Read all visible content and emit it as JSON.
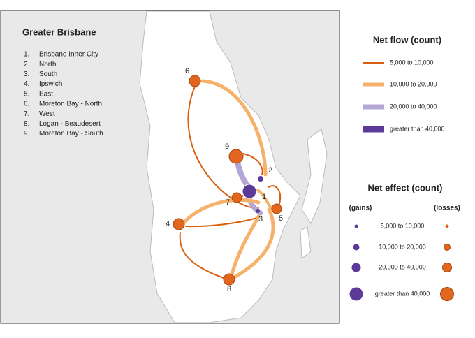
{
  "map": {
    "title": "Greater Brisbane",
    "regions": [
      {
        "number": "1.",
        "name": "Brisbane Inner City"
      },
      {
        "number": "2.",
        "name": "North"
      },
      {
        "number": "3.",
        "name": "South"
      },
      {
        "number": "4.",
        "name": "Ipswich"
      },
      {
        "number": "5.",
        "name": "East"
      },
      {
        "number": "6.",
        "name": "Moreton Bay - North"
      },
      {
        "number": "7.",
        "name": "West"
      },
      {
        "number": "8.",
        "name": "Logan - Beaudesert"
      },
      {
        "number": "9.",
        "name": "Moreton Bay - South"
      }
    ],
    "node_labels": [
      "1",
      "2",
      "3",
      "4",
      "5",
      "6",
      "7",
      "8",
      "9"
    ]
  },
  "flow_legend": {
    "title": "Net flow (count)",
    "items": [
      "5,000  to 10,000",
      "10,000  to 20,000",
      "20,000  to 40,000",
      "greater than 40,000"
    ]
  },
  "effect_legend": {
    "title": "Net effect (count)",
    "gains": "(gains)",
    "losses": "(losses)",
    "items": [
      "5,000  to 10,000",
      "10,000  to 20,000",
      "20,000  to 40,000",
      "greater than 40,000"
    ]
  }
}
